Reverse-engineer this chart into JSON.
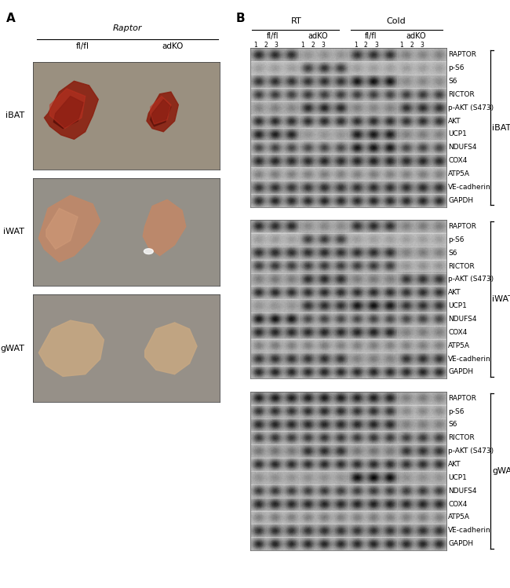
{
  "panel_a_label": "A",
  "panel_b_label": "B",
  "raptor_label": "Raptor",
  "flfl_label": "fl/fl",
  "adko_label": "adKO",
  "tissue_labels": [
    "iBAT",
    "iWAT",
    "gWAT"
  ],
  "rt_label": "RT",
  "cold_label": "Cold",
  "col_groups": [
    "fl/fl",
    "adKO",
    "fl/fl",
    "adKO"
  ],
  "col_nums": [
    "1",
    "2",
    "3",
    "1",
    "2",
    "3",
    "1",
    "2",
    "3",
    "1",
    "2",
    "3"
  ],
  "wb_section_labels": [
    "iBAT",
    "iWAT",
    "gWAT"
  ],
  "wb_band_labels": [
    "RAPTOR",
    "p-S6",
    "S6",
    "RICTOR",
    "p-AKT (S473)",
    "AKT",
    "UCP1",
    "NDUFS4",
    "COX4",
    "ATP5A",
    "VE-cadherin",
    "GAPDH"
  ],
  "bg_color": "#ffffff",
  "tissue_bg_iBAT": "#a09080",
  "tissue_bg_iWAT": "#989080",
  "tissue_bg_gWAT": "#989080",
  "border_color": "#000000",
  "text_color": "#000000",
  "label_fontsize": 8,
  "small_fontsize": 7,
  "band_label_fontsize": 6.5,
  "header_fontsize": 8,
  "panel_label_fontsize": 11,
  "wb_iBAT": {
    "RAPTOR": [
      0.25,
      0.27,
      0.28,
      0.8,
      0.78,
      0.8,
      0.3,
      0.28,
      0.3,
      0.7,
      0.72,
      0.7
    ],
    "p-S6": [
      0.8,
      0.8,
      0.8,
      0.3,
      0.25,
      0.28,
      0.8,
      0.8,
      0.8,
      0.8,
      0.8,
      0.8
    ],
    "S6": [
      0.3,
      0.28,
      0.3,
      0.3,
      0.28,
      0.3,
      0.15,
      0.12,
      0.14,
      0.75,
      0.73,
      0.75
    ],
    "RICTOR": [
      0.3,
      0.3,
      0.32,
      0.28,
      0.3,
      0.3,
      0.3,
      0.3,
      0.32,
      0.3,
      0.28,
      0.3
    ],
    "p-AKT (S473)": [
      0.72,
      0.7,
      0.72,
      0.25,
      0.22,
      0.24,
      0.7,
      0.72,
      0.7,
      0.28,
      0.26,
      0.28
    ],
    "AKT": [
      0.22,
      0.2,
      0.22,
      0.22,
      0.2,
      0.22,
      0.22,
      0.2,
      0.22,
      0.24,
      0.22,
      0.24
    ],
    "UCP1": [
      0.22,
      0.2,
      0.22,
      0.8,
      0.8,
      0.8,
      0.18,
      0.16,
      0.18,
      0.7,
      0.68,
      0.7
    ],
    "NDUFS4": [
      0.35,
      0.32,
      0.35,
      0.35,
      0.33,
      0.35,
      0.1,
      0.08,
      0.1,
      0.35,
      0.33,
      0.35
    ],
    "COX4": [
      0.25,
      0.23,
      0.25,
      0.25,
      0.23,
      0.25,
      0.22,
      0.2,
      0.22,
      0.25,
      0.23,
      0.25
    ],
    "ATP5A": [
      0.65,
      0.63,
      0.65,
      0.65,
      0.63,
      0.65,
      0.65,
      0.63,
      0.65,
      0.65,
      0.63,
      0.65
    ],
    "VE-cadherin": [
      0.3,
      0.28,
      0.3,
      0.3,
      0.28,
      0.3,
      0.28,
      0.26,
      0.28,
      0.28,
      0.26,
      0.28
    ],
    "GAPDH": [
      0.2,
      0.18,
      0.2,
      0.2,
      0.18,
      0.2,
      0.2,
      0.18,
      0.2,
      0.2,
      0.18,
      0.2
    ]
  },
  "wb_iWAT": {
    "RAPTOR": [
      0.25,
      0.27,
      0.25,
      0.75,
      0.73,
      0.75,
      0.28,
      0.26,
      0.28,
      0.7,
      0.68,
      0.7
    ],
    "p-S6": [
      0.78,
      0.78,
      0.8,
      0.3,
      0.28,
      0.3,
      0.8,
      0.8,
      0.8,
      0.8,
      0.8,
      0.8
    ],
    "S6": [
      0.28,
      0.26,
      0.28,
      0.28,
      0.26,
      0.28,
      0.28,
      0.26,
      0.28,
      0.7,
      0.68,
      0.7
    ],
    "RICTOR": [
      0.3,
      0.28,
      0.3,
      0.3,
      0.28,
      0.3,
      0.3,
      0.28,
      0.3,
      0.75,
      0.73,
      0.75
    ],
    "p-AKT (S473)": [
      0.68,
      0.66,
      0.68,
      0.26,
      0.24,
      0.26,
      0.68,
      0.66,
      0.68,
      0.3,
      0.28,
      0.3
    ],
    "AKT": [
      0.22,
      0.2,
      0.22,
      0.22,
      0.2,
      0.22,
      0.22,
      0.2,
      0.22,
      0.24,
      0.22,
      0.24
    ],
    "UCP1": [
      0.8,
      0.8,
      0.8,
      0.28,
      0.26,
      0.28,
      0.15,
      0.12,
      0.15,
      0.3,
      0.28,
      0.3
    ],
    "NDUFS4": [
      0.1,
      0.08,
      0.1,
      0.35,
      0.33,
      0.35,
      0.35,
      0.33,
      0.35,
      0.35,
      0.33,
      0.35
    ],
    "COX4": [
      0.25,
      0.23,
      0.25,
      0.25,
      0.23,
      0.25,
      0.22,
      0.2,
      0.22,
      0.7,
      0.68,
      0.7
    ],
    "ATP5A": [
      0.65,
      0.63,
      0.65,
      0.65,
      0.63,
      0.65,
      0.65,
      0.63,
      0.65,
      0.65,
      0.63,
      0.65
    ],
    "VE-cadherin": [
      0.3,
      0.28,
      0.3,
      0.3,
      0.28,
      0.3,
      0.7,
      0.68,
      0.7,
      0.3,
      0.28,
      0.3
    ],
    "GAPDH": [
      0.2,
      0.18,
      0.2,
      0.2,
      0.18,
      0.2,
      0.2,
      0.18,
      0.2,
      0.2,
      0.18,
      0.2
    ]
  },
  "wb_gWAT": {
    "RAPTOR": [
      0.2,
      0.18,
      0.2,
      0.2,
      0.18,
      0.2,
      0.22,
      0.2,
      0.22,
      0.7,
      0.68,
      0.7
    ],
    "p-S6": [
      0.25,
      0.23,
      0.25,
      0.22,
      0.2,
      0.22,
      0.25,
      0.23,
      0.25,
      0.7,
      0.68,
      0.7
    ],
    "S6": [
      0.25,
      0.23,
      0.25,
      0.25,
      0.23,
      0.25,
      0.25,
      0.23,
      0.25,
      0.7,
      0.68,
      0.7
    ],
    "RICTOR": [
      0.28,
      0.26,
      0.28,
      0.28,
      0.26,
      0.28,
      0.28,
      0.26,
      0.28,
      0.3,
      0.28,
      0.3
    ],
    "p-AKT (S473)": [
      0.65,
      0.63,
      0.65,
      0.28,
      0.26,
      0.28,
      0.65,
      0.63,
      0.65,
      0.3,
      0.28,
      0.3
    ],
    "AKT": [
      0.22,
      0.2,
      0.22,
      0.22,
      0.2,
      0.22,
      0.22,
      0.2,
      0.22,
      0.24,
      0.22,
      0.24
    ],
    "UCP1": [
      0.78,
      0.78,
      0.8,
      0.78,
      0.78,
      0.8,
      0.1,
      0.08,
      0.1,
      0.78,
      0.78,
      0.8
    ],
    "NDUFS4": [
      0.3,
      0.28,
      0.3,
      0.3,
      0.28,
      0.3,
      0.3,
      0.28,
      0.3,
      0.3,
      0.28,
      0.3
    ],
    "COX4": [
      0.25,
      0.23,
      0.25,
      0.25,
      0.23,
      0.25,
      0.22,
      0.2,
      0.22,
      0.25,
      0.23,
      0.25
    ],
    "ATP5A": [
      0.65,
      0.63,
      0.65,
      0.65,
      0.63,
      0.65,
      0.65,
      0.63,
      0.65,
      0.65,
      0.63,
      0.65
    ],
    "VE-cadherin": [
      0.3,
      0.28,
      0.3,
      0.3,
      0.28,
      0.3,
      0.3,
      0.28,
      0.3,
      0.3,
      0.28,
      0.3
    ],
    "GAPDH": [
      0.2,
      0.18,
      0.2,
      0.2,
      0.18,
      0.2,
      0.2,
      0.18,
      0.2,
      0.2,
      0.18,
      0.2
    ]
  }
}
